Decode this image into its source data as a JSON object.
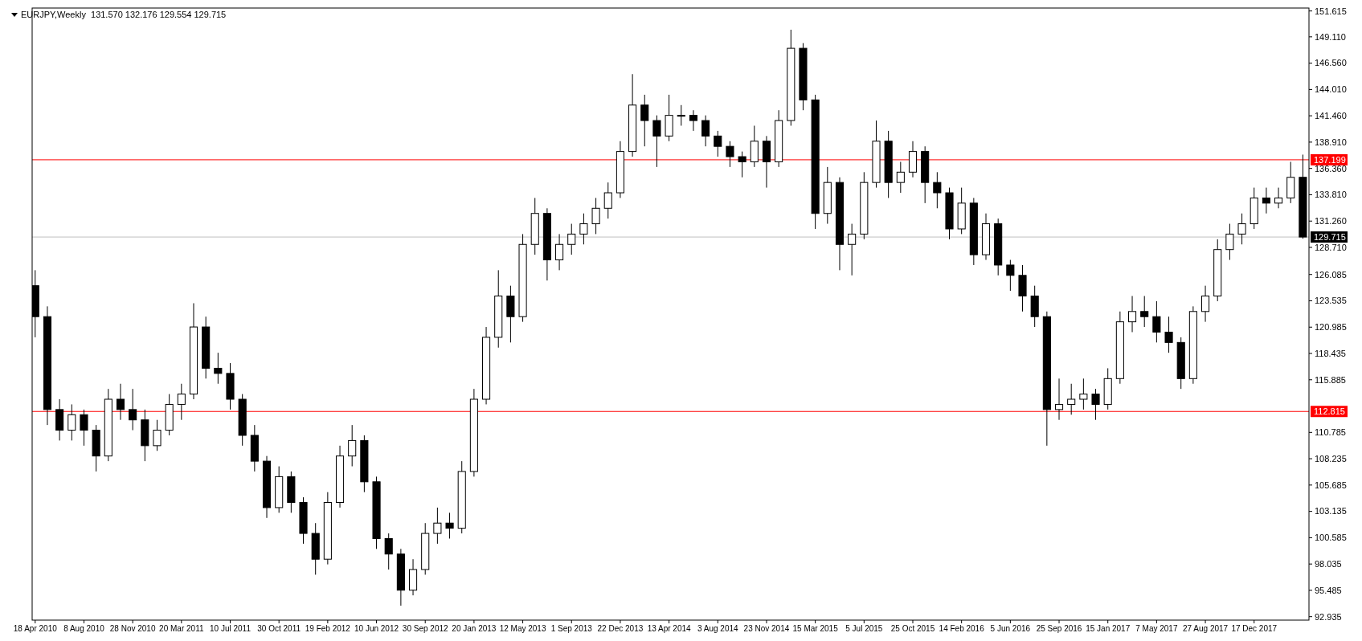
{
  "chart_data": {
    "type": "candlestick",
    "title": "EURJPY,Weekly  131.570 132.176 129.554 129.715",
    "x": [
      "2010-04-18",
      "2010-05-16",
      "2010-06-13",
      "2010-07-11",
      "2010-08-08",
      "2010-09-05",
      "2010-10-03",
      "2010-10-31",
      "2010-11-28",
      "2010-12-26",
      "2011-01-23",
      "2011-02-20",
      "2011-03-20",
      "2011-04-17",
      "2011-05-15",
      "2011-06-12",
      "2011-07-10",
      "2011-08-07",
      "2011-09-04",
      "2011-10-02",
      "2011-10-30",
      "2011-11-27",
      "2011-12-25",
      "2012-01-22",
      "2012-02-19",
      "2012-03-18",
      "2012-04-15",
      "2012-05-13",
      "2012-06-10",
      "2012-07-08",
      "2012-08-05",
      "2012-09-02",
      "2012-09-30",
      "2012-10-28",
      "2012-11-25",
      "2012-12-23",
      "2013-01-20",
      "2013-02-17",
      "2013-03-17",
      "2013-04-14",
      "2013-05-12",
      "2013-06-09",
      "2013-07-07",
      "2013-08-04",
      "2013-09-01",
      "2013-09-29",
      "2013-10-27",
      "2013-11-24",
      "2013-12-22",
      "2014-01-19",
      "2014-02-16",
      "2014-03-16",
      "2014-04-13",
      "2014-05-11",
      "2014-06-08",
      "2014-07-06",
      "2014-08-03",
      "2014-08-31",
      "2014-09-28",
      "2014-10-26",
      "2014-11-23",
      "2014-12-21",
      "2015-01-18",
      "2015-02-15",
      "2015-03-15",
      "2015-04-12",
      "2015-05-10",
      "2015-06-07",
      "2015-07-05",
      "2015-08-02",
      "2015-08-30",
      "2015-09-27",
      "2015-10-25",
      "2015-11-22",
      "2015-12-20",
      "2016-01-17",
      "2016-02-14",
      "2016-03-13",
      "2016-04-10",
      "2016-05-08",
      "2016-06-05",
      "2016-07-03",
      "2016-07-31",
      "2016-08-28",
      "2016-09-25",
      "2016-10-23",
      "2016-11-20",
      "2016-12-18",
      "2017-01-15",
      "2017-02-12",
      "2017-03-12",
      "2017-04-09",
      "2017-05-07",
      "2017-06-04",
      "2017-07-02",
      "2017-07-30",
      "2017-08-27",
      "2017-09-24",
      "2017-10-22",
      "2017-11-19",
      "2017-12-17",
      "2018-01-14",
      "2018-02-11",
      "2018-03-11",
      "2018-04-08"
    ],
    "ohlc": [
      [
        125,
        126.5,
        120,
        122
      ],
      [
        122,
        123,
        111.5,
        113
      ],
      [
        113,
        114,
        110,
        111
      ],
      [
        111,
        113.5,
        110,
        112.5
      ],
      [
        112.5,
        113,
        109.5,
        111
      ],
      [
        111,
        111.5,
        107,
        108.5
      ],
      [
        108.5,
        115,
        108,
        114
      ],
      [
        114,
        115.5,
        112,
        113
      ],
      [
        113,
        115,
        111,
        112
      ],
      [
        112,
        113,
        108,
        109.5
      ],
      [
        109.5,
        112,
        109,
        111
      ],
      [
        111,
        114.5,
        110.5,
        113.5
      ],
      [
        113.5,
        115.5,
        112,
        114.5
      ],
      [
        114.5,
        123.3,
        114,
        121
      ],
      [
        121,
        122,
        116,
        117
      ],
      [
        117,
        118.5,
        115.5,
        116.5
      ],
      [
        116.5,
        117.5,
        113,
        114
      ],
      [
        114,
        114.5,
        109.5,
        110.5
      ],
      [
        110.5,
        111.5,
        107,
        108
      ],
      [
        108,
        108.5,
        102.5,
        103.5
      ],
      [
        103.5,
        107.5,
        103,
        106.5
      ],
      [
        106.5,
        107,
        103,
        104
      ],
      [
        104,
        104.5,
        100,
        101
      ],
      [
        101,
        102,
        97,
        98.5
      ],
      [
        98.5,
        105,
        98,
        104
      ],
      [
        104,
        109.5,
        103.5,
        108.5
      ],
      [
        108.5,
        111.5,
        107.5,
        110
      ],
      [
        110,
        110.5,
        105,
        106
      ],
      [
        106,
        106.5,
        99.5,
        100.5
      ],
      [
        100.5,
        101,
        97.5,
        99
      ],
      [
        99,
        99.5,
        94,
        95.5
      ],
      [
        95.5,
        98.5,
        95,
        97.5
      ],
      [
        97.5,
        102,
        97,
        101
      ],
      [
        101,
        103.5,
        100,
        102
      ],
      [
        102,
        103,
        100.5,
        101.5
      ],
      [
        101.5,
        108,
        101,
        107
      ],
      [
        107,
        115,
        106.5,
        114
      ],
      [
        114,
        121,
        113.5,
        120
      ],
      [
        120,
        126.5,
        119,
        124
      ],
      [
        124,
        125,
        119.5,
        122
      ],
      [
        122,
        130,
        121.5,
        129
      ],
      [
        129,
        133.5,
        128,
        132
      ],
      [
        132,
        132.5,
        125.5,
        127.5
      ],
      [
        127.5,
        130,
        126.5,
        129
      ],
      [
        129,
        131,
        128,
        130
      ],
      [
        130,
        132,
        129,
        131
      ],
      [
        131,
        133.5,
        130,
        132.5
      ],
      [
        132.5,
        135,
        131.5,
        134
      ],
      [
        134,
        139,
        133.5,
        138
      ],
      [
        138,
        145.5,
        137.5,
        142.5
      ],
      [
        142.5,
        143.5,
        138.5,
        141
      ],
      [
        141,
        141.5,
        136.5,
        139.5
      ],
      [
        139.5,
        143.5,
        139,
        141.5
      ],
      [
        141.5,
        142.5,
        140.5,
        141.5
      ],
      [
        141.5,
        142,
        140,
        141
      ],
      [
        141,
        141.5,
        138.5,
        139.5
      ],
      [
        139.5,
        140,
        137.5,
        138.5
      ],
      [
        138.5,
        139,
        136.5,
        137.5
      ],
      [
        137.5,
        138,
        135.5,
        137
      ],
      [
        137,
        140.5,
        136.5,
        139
      ],
      [
        139,
        139.5,
        134.5,
        137
      ],
      [
        137,
        142,
        136.5,
        141
      ],
      [
        141,
        149.8,
        140.5,
        148
      ],
      [
        148,
        148.5,
        142,
        143
      ],
      [
        143,
        143.5,
        130.5,
        132
      ],
      [
        132,
        136.5,
        131,
        135
      ],
      [
        135,
        135.5,
        126.5,
        129
      ],
      [
        129,
        131,
        126,
        130
      ],
      [
        130,
        136,
        129.5,
        135
      ],
      [
        135,
        141,
        134.5,
        139
      ],
      [
        139,
        140,
        133.5,
        135
      ],
      [
        135,
        137,
        134,
        136
      ],
      [
        136,
        139,
        135.5,
        138
      ],
      [
        138,
        138.5,
        133,
        135
      ],
      [
        135,
        136,
        132.5,
        134
      ],
      [
        134,
        134.5,
        129.5,
        130.5
      ],
      [
        130.5,
        134.5,
        130,
        133
      ],
      [
        133,
        133.5,
        127,
        128
      ],
      [
        128,
        132,
        127.5,
        131
      ],
      [
        131,
        131.5,
        126,
        127
      ],
      [
        127,
        127.5,
        124.5,
        126
      ],
      [
        126,
        127,
        122.5,
        124
      ],
      [
        124,
        125,
        121,
        122
      ],
      [
        122,
        122.5,
        109.5,
        113
      ],
      [
        113,
        116,
        112,
        113.5
      ],
      [
        113.5,
        115.5,
        112.5,
        114
      ],
      [
        114,
        116,
        113,
        114.5
      ],
      [
        114.5,
        115,
        112,
        113.5
      ],
      [
        113.5,
        117,
        113,
        116
      ],
      [
        116,
        122.5,
        115.5,
        121.5
      ],
      [
        121.5,
        124,
        120.5,
        122.5
      ],
      [
        122.5,
        124,
        121,
        122
      ],
      [
        122,
        123.5,
        119.5,
        120.5
      ],
      [
        120.5,
        122,
        118.5,
        119.5
      ],
      [
        119.5,
        120,
        115,
        116
      ],
      [
        116,
        123,
        115.5,
        122.5
      ],
      [
        122.5,
        125,
        121.5,
        124
      ],
      [
        124,
        129.5,
        123.5,
        128.5
      ],
      [
        128.5,
        131,
        127.5,
        130
      ],
      [
        130,
        132,
        129,
        131
      ],
      [
        131,
        134.5,
        130.5,
        133.5
      ],
      [
        133.5,
        134.5,
        132,
        133
      ],
      [
        133,
        134.5,
        132.5,
        133.5
      ],
      [
        133.5,
        137,
        133,
        135.5
      ],
      [
        135.5,
        137.7,
        129.554,
        129.715
      ]
    ],
    "xlim": [
      "2010-04-11",
      "2018-04-22"
    ],
    "xticks": [
      {
        "value": "2010-04-18",
        "label": "18 Apr 2010"
      },
      {
        "value": "2010-08-08",
        "label": "8 Aug 2010"
      },
      {
        "value": "2010-11-28",
        "label": "28 Nov 2010"
      },
      {
        "value": "2011-03-20",
        "label": "20 Mar 2011"
      },
      {
        "value": "2011-07-10",
        "label": "10 Jul 2011"
      },
      {
        "value": "2011-10-30",
        "label": "30 Oct 2011"
      },
      {
        "value": "2012-02-19",
        "label": "19 Feb 2012"
      },
      {
        "value": "2012-06-10",
        "label": "10 Jun 2012"
      },
      {
        "value": "2012-09-30",
        "label": "30 Sep 2012"
      },
      {
        "value": "2013-01-20",
        "label": "20 Jan 2013"
      },
      {
        "value": "2013-05-12",
        "label": "12 May 2013"
      },
      {
        "value": "2013-09-01",
        "label": "1 Sep 2013"
      },
      {
        "value": "2013-12-22",
        "label": "22 Dec 2013"
      },
      {
        "value": "2014-04-13",
        "label": "13 Apr 2014"
      },
      {
        "value": "2014-08-03",
        "label": "3 Aug 2014"
      },
      {
        "value": "2014-11-23",
        "label": "23 Nov 2014"
      },
      {
        "value": "2015-03-15",
        "label": "15 Mar 2015"
      },
      {
        "value": "2015-07-05",
        "label": "5 Jul 2015"
      },
      {
        "value": "2015-10-25",
        "label": "25 Oct 2015"
      },
      {
        "value": "2016-02-14",
        "label": "14 Feb 2016"
      },
      {
        "value": "2016-06-05",
        "label": "5 Jun 2016"
      },
      {
        "value": "2016-09-25",
        "label": "25 Sep 2016"
      },
      {
        "value": "2017-01-15",
        "label": "15 Jan 2017"
      },
      {
        "value": "2017-05-07",
        "label": "7 May 2017"
      },
      {
        "value": "2017-08-27",
        "label": "27 Aug 2017"
      },
      {
        "value": "2017-12-17",
        "label": "17 Dec 2017"
      }
    ],
    "ylim": [
      92.6,
      151.9
    ],
    "yticks": [
      {
        "value": 151.615,
        "label": "151.615"
      },
      {
        "value": 149.11,
        "label": "149.110"
      },
      {
        "value": 146.56,
        "label": "146.560"
      },
      {
        "value": 144.01,
        "label": "144.010"
      },
      {
        "value": 141.46,
        "label": "141.460"
      },
      {
        "value": 138.91,
        "label": "138.910"
      },
      {
        "value": 136.36,
        "label": "136.360"
      },
      {
        "value": 133.81,
        "label": "133.810"
      },
      {
        "value": 131.26,
        "label": "131.260"
      },
      {
        "value": 128.71,
        "label": "128.710"
      },
      {
        "value": 126.085,
        "label": "126.085"
      },
      {
        "value": 123.535,
        "label": "123.535"
      },
      {
        "value": 120.985,
        "label": "120.985"
      },
      {
        "value": 118.435,
        "label": "118.435"
      },
      {
        "value": 115.885,
        "label": "115.885"
      },
      {
        "value": 110.785,
        "label": "110.785"
      },
      {
        "value": 108.235,
        "label": "108.235"
      },
      {
        "value": 105.685,
        "label": "105.685"
      },
      {
        "value": 103.135,
        "label": "103.135"
      },
      {
        "value": 100.585,
        "label": "100.585"
      },
      {
        "value": 98.035,
        "label": "98.035"
      },
      {
        "value": 95.485,
        "label": "95.485"
      },
      {
        "value": 92.935,
        "label": "92.935"
      }
    ],
    "ref_lines": [
      {
        "axis": "y",
        "value": 137.199,
        "label": "137.199",
        "color": "#ff0000"
      },
      {
        "axis": "y",
        "value": 112.815,
        "label": "112.815",
        "color": "#ff0000"
      },
      {
        "axis": "y",
        "value": 129.715,
        "label": "129.715",
        "color": "#c0c0c0"
      }
    ],
    "grid": false
  }
}
